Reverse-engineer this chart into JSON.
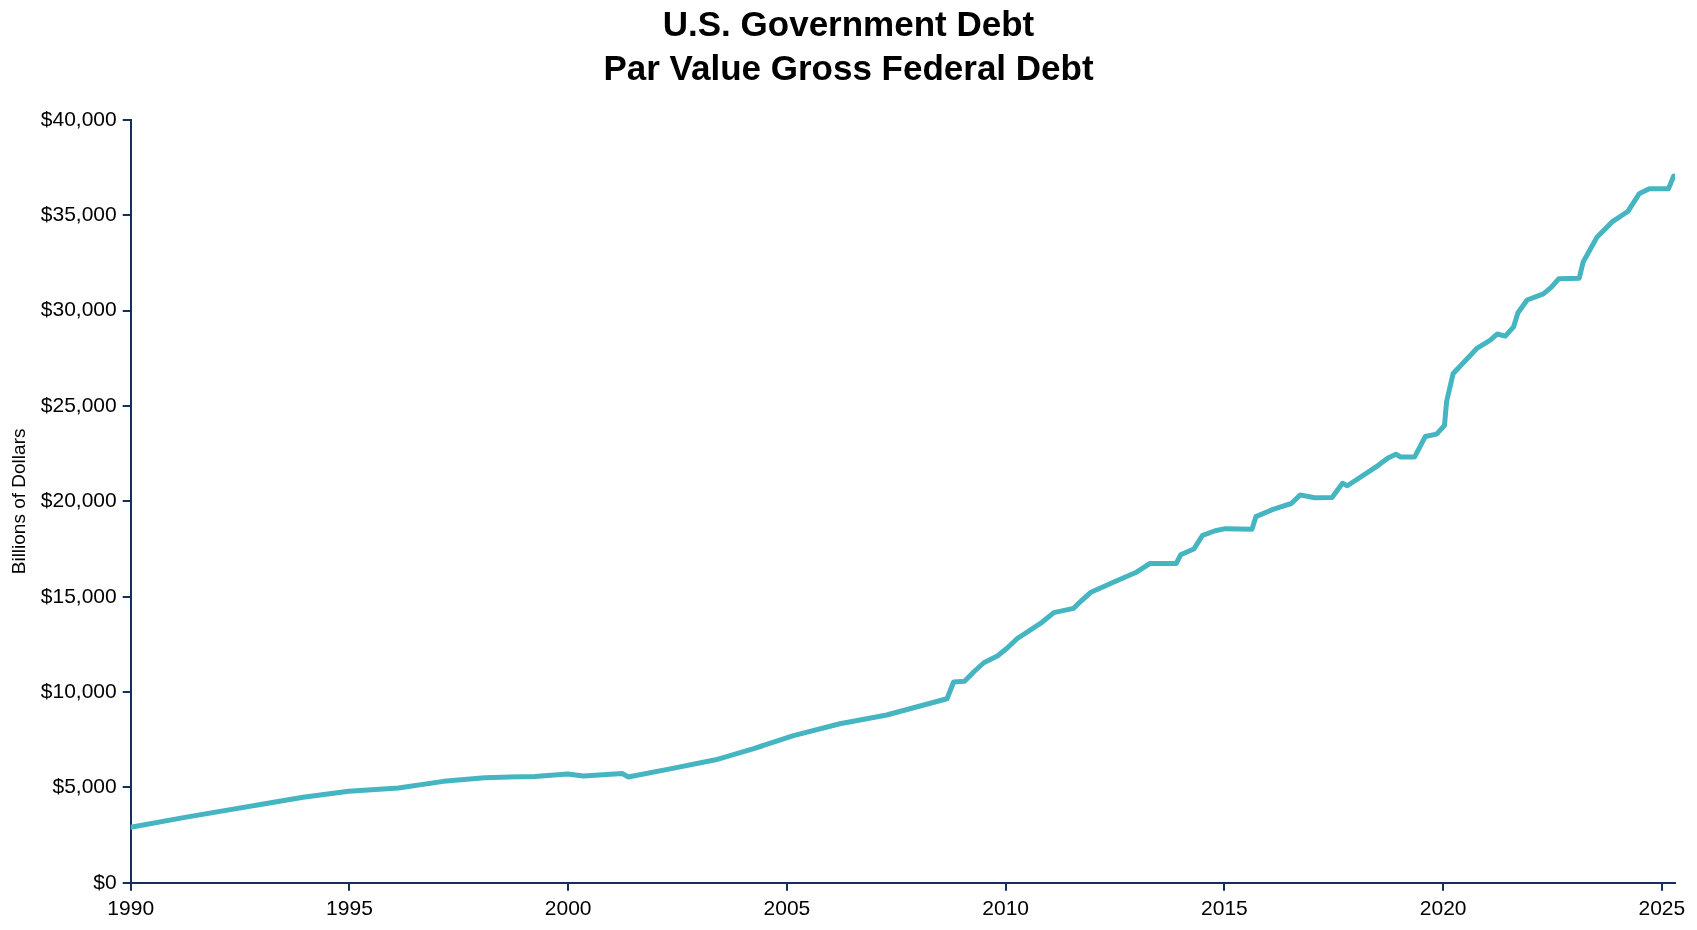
{
  "chart_data": {
    "type": "line",
    "title": "U.S. Government Debt",
    "subtitle": "Par Value Gross Federal Debt",
    "ylabel": "Billions of Dollars",
    "x": [
      1990,
      1991.24,
      1992.9,
      1993.94,
      1994.98,
      1996.12,
      1997.15,
      1998.09,
      1999.23,
      1999.99,
      2000.35,
      2001.24,
      2001.37,
      2002.3,
      2003.37,
      2004.26,
      2005.15,
      2006.21,
      2007.28,
      2008.17,
      2008.66,
      2008.81,
      2009.06,
      2009.28,
      2009.5,
      2009.81,
      2010.03,
      2010.26,
      2010.83,
      2011.1,
      2011.55,
      2011.64,
      2011.95,
      2012.5,
      2013.0,
      2013.3,
      2013.9,
      2014.0,
      2014.3,
      2014.5,
      2014.79,
      2015.02,
      2015.63,
      2015.72,
      2016.13,
      2016.53,
      2016.73,
      2017.06,
      2017.46,
      2017.7,
      2017.81,
      2018.51,
      2018.74,
      2018.92,
      2019.03,
      2019.35,
      2019.59,
      2019.85,
      2020.03,
      2020.08,
      2020.23,
      2020.78,
      2021.07,
      2021.24,
      2021.42,
      2021.61,
      2021.71,
      2021.92,
      2022.29,
      2022.47,
      2022.64,
      2023.11,
      2023.2,
      2023.52,
      2023.87,
      2024.22,
      2024.48,
      2024.71,
      2025.15,
      2025.27
    ],
    "series": [
      {
        "color": "#45b5c2",
        "values": [
          2910,
          3430,
          4080,
          4490,
          4800,
          4970,
          5320,
          5510,
          5580,
          5700,
          5600,
          5730,
          5550,
          5960,
          6450,
          7050,
          7720,
          8340,
          8800,
          9350,
          9650,
          10530,
          10570,
          11080,
          11540,
          11890,
          12300,
          12800,
          13660,
          14170,
          14390,
          14600,
          15240,
          15800,
          16300,
          16750,
          16750,
          17200,
          17500,
          18220,
          18460,
          18570,
          18540,
          19200,
          19600,
          19890,
          20340,
          20190,
          20210,
          20950,
          20820,
          21880,
          22280,
          22470,
          22330,
          22330,
          23400,
          23530,
          23980,
          25250,
          26710,
          28040,
          28440,
          28780,
          28670,
          29150,
          29890,
          30560,
          30880,
          31220,
          31670,
          31700,
          32550,
          33870,
          34670,
          35200,
          36130,
          36390,
          36390,
          37060
        ]
      }
    ],
    "xlim": [
      1990,
      2025.3
    ],
    "xticks": [
      1990,
      1995,
      2000,
      2005,
      2010,
      2015,
      2020,
      2025
    ],
    "ylim": [
      0,
      40000
    ],
    "yticks": [
      {
        "value": 0,
        "label": "$0"
      },
      {
        "value": 5000,
        "label": "$5,000"
      },
      {
        "value": 10000,
        "label": "$10,000"
      },
      {
        "value": 15000,
        "label": "$15,000"
      },
      {
        "value": 20000,
        "label": "$20,000"
      },
      {
        "value": 25000,
        "label": "$25,000"
      },
      {
        "value": 30000,
        "label": "$30,000"
      },
      {
        "value": 35000,
        "label": "$35,000"
      },
      {
        "value": 40000,
        "label": "$40,000"
      }
    ],
    "grid": false,
    "legend": false,
    "marker": "none",
    "line_style": "solid"
  }
}
